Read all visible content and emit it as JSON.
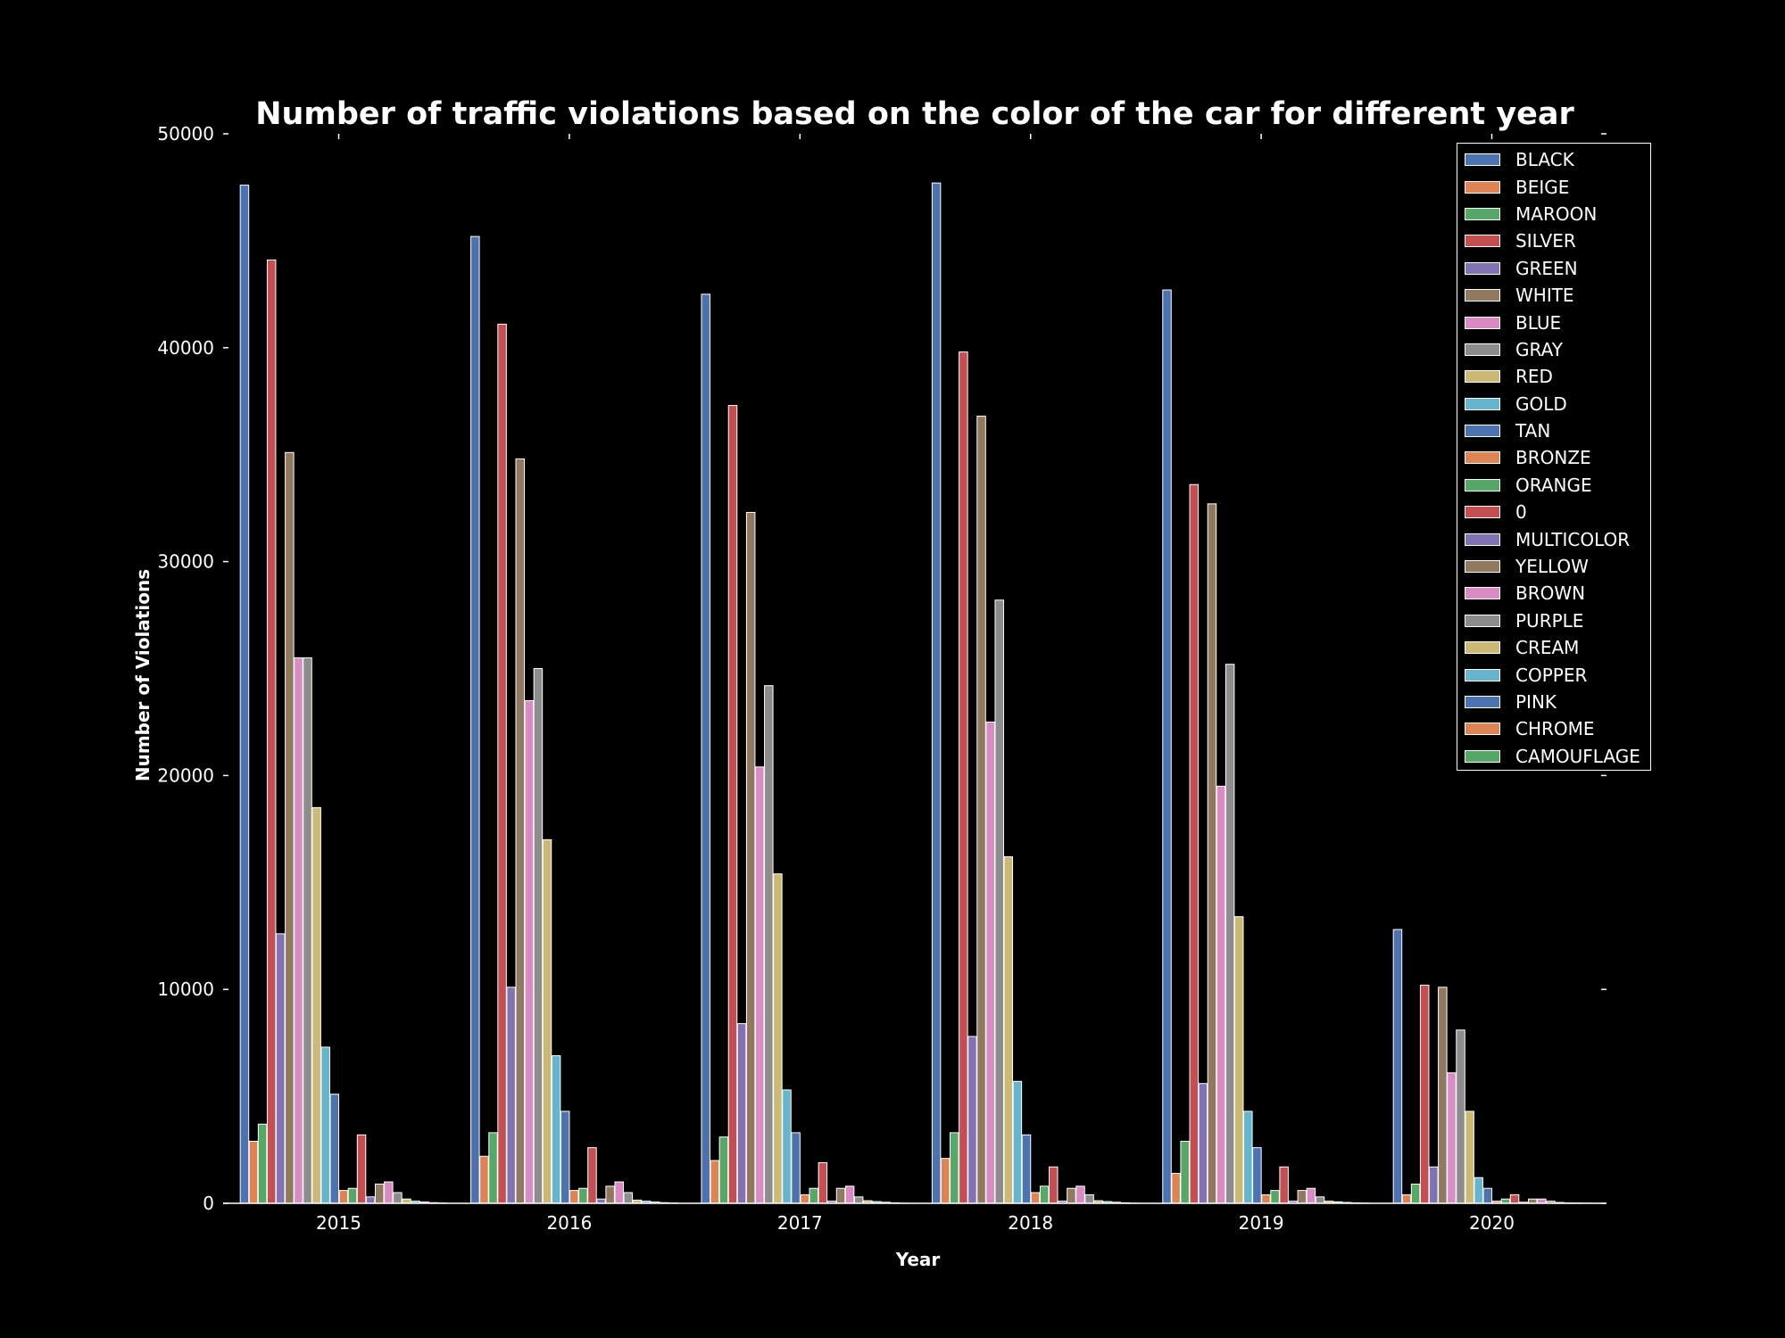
{
  "chart_data": {
    "type": "bar",
    "title": "Number of traffic violations based on the color of the car for different year",
    "xlabel": "Year",
    "ylabel": "Number of Violations",
    "categories": [
      "2015",
      "2016",
      "2017",
      "2018",
      "2019",
      "2020"
    ],
    "ylim": [
      0,
      50000
    ],
    "yticks": [
      "0",
      "10000",
      "20000",
      "30000",
      "40000",
      "50000"
    ],
    "grid": false,
    "legend_position": "top-right",
    "series": [
      {
        "name": "BLACK",
        "color": "#4c72b0",
        "values": [
          47600,
          45200,
          42500,
          47700,
          42700,
          12800
        ]
      },
      {
        "name": "BEIGE",
        "color": "#dd8452",
        "values": [
          2900,
          2200,
          2000,
          2100,
          1400,
          400
        ]
      },
      {
        "name": "MAROON",
        "color": "#55a868",
        "values": [
          3700,
          3300,
          3100,
          3300,
          2900,
          900
        ]
      },
      {
        "name": "SILVER",
        "color": "#c44e52",
        "values": [
          44100,
          41100,
          37300,
          39800,
          33600,
          10200
        ]
      },
      {
        "name": "GREEN",
        "color": "#8172b3",
        "values": [
          12600,
          10100,
          8400,
          7800,
          5600,
          1700
        ]
      },
      {
        "name": "WHITE",
        "color": "#937860",
        "values": [
          35100,
          34800,
          32300,
          36800,
          32700,
          10100
        ]
      },
      {
        "name": "BLUE",
        "color": "#da8bc3",
        "values": [
          25500,
          23500,
          20400,
          22500,
          19500,
          6100
        ]
      },
      {
        "name": "GRAY",
        "color": "#8c8c8c",
        "values": [
          25500,
          25000,
          24200,
          28200,
          25200,
          8100
        ]
      },
      {
        "name": "RED",
        "color": "#ccb974",
        "values": [
          18500,
          17000,
          15400,
          16200,
          13400,
          4300
        ]
      },
      {
        "name": "GOLD",
        "color": "#64b5cd",
        "values": [
          7300,
          6900,
          5300,
          5700,
          4300,
          1200
        ]
      },
      {
        "name": "TAN",
        "color": "#4c72b0",
        "values": [
          5100,
          4300,
          3300,
          3200,
          2600,
          700
        ]
      },
      {
        "name": "BRONZE",
        "color": "#dd8452",
        "values": [
          600,
          600,
          400,
          500,
          400,
          100
        ]
      },
      {
        "name": "ORANGE",
        "color": "#55a868",
        "values": [
          700,
          700,
          700,
          800,
          600,
          200
        ]
      },
      {
        "name": "0",
        "color": "#c44e52",
        "values": [
          3200,
          2600,
          1900,
          1700,
          1700,
          400
        ]
      },
      {
        "name": "MULTICOLOR",
        "color": "#8172b3",
        "values": [
          300,
          200,
          100,
          100,
          100,
          50
        ]
      },
      {
        "name": "YELLOW",
        "color": "#937860",
        "values": [
          900,
          800,
          700,
          700,
          600,
          200
        ]
      },
      {
        "name": "BROWN",
        "color": "#da8bc3",
        "values": [
          1000,
          1000,
          800,
          800,
          700,
          200
        ]
      },
      {
        "name": "PURPLE",
        "color": "#8c8c8c",
        "values": [
          500,
          500,
          300,
          400,
          300,
          100
        ]
      },
      {
        "name": "CREAM",
        "color": "#ccb974",
        "values": [
          200,
          150,
          120,
          120,
          100,
          40
        ]
      },
      {
        "name": "COPPER",
        "color": "#64b5cd",
        "values": [
          100,
          100,
          80,
          80,
          70,
          20
        ]
      },
      {
        "name": "PINK",
        "color": "#4c72b0",
        "values": [
          60,
          60,
          50,
          50,
          40,
          15
        ]
      },
      {
        "name": "CHROME",
        "color": "#dd8452",
        "values": [
          30,
          30,
          25,
          25,
          20,
          10
        ]
      },
      {
        "name": "CAMOUFLAGE",
        "color": "#55a868",
        "values": [
          15,
          15,
          10,
          10,
          10,
          5
        ]
      }
    ]
  }
}
